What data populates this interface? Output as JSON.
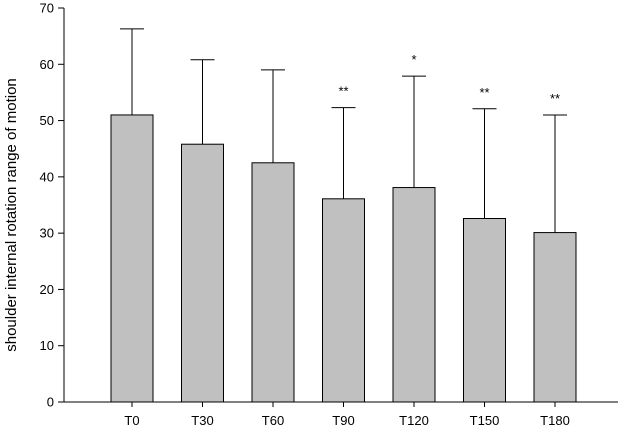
{
  "chart_data": {
    "type": "bar",
    "title": "",
    "xlabel": "",
    "ylabel": "shoulder internal rotation range of motion",
    "ylim": [
      0,
      70
    ],
    "yticks": [
      0,
      10,
      20,
      30,
      40,
      50,
      60,
      70
    ],
    "grid": false,
    "legend": "none",
    "bar_color": "#c0c0c0",
    "categories": [
      "T0",
      "T30",
      "T60",
      "T90",
      "T120",
      "T150",
      "T180"
    ],
    "values": [
      51.0,
      45.8,
      42.5,
      36.1,
      38.1,
      32.6,
      30.1
    ],
    "error_upper": [
      66.3,
      60.8,
      59.0,
      52.3,
      57.9,
      52.1,
      51.0
    ],
    "significance": [
      "",
      "",
      "",
      "**",
      "*",
      "**",
      "**"
    ]
  }
}
